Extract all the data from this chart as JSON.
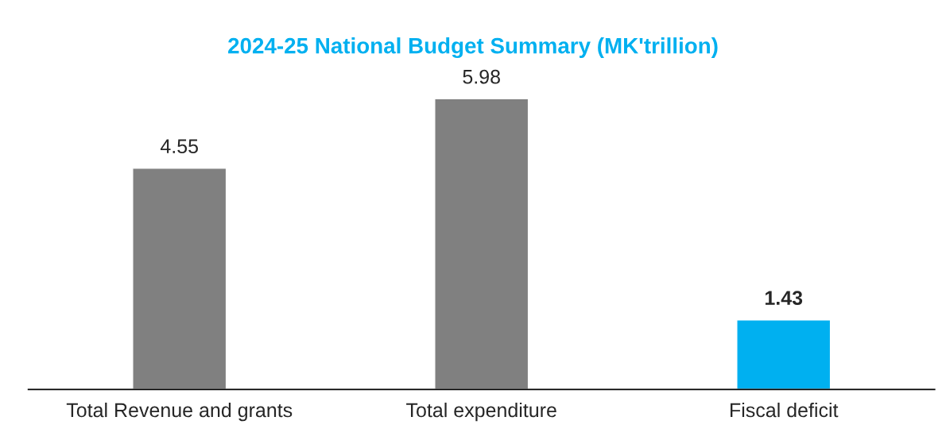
{
  "chart_data": {
    "type": "bar",
    "title": "2024-25 National Budget Summary (MK'trillion)",
    "categories": [
      "Total Revenue and grants",
      "Total expenditure",
      "Fiscal deficit"
    ],
    "values": [
      4.55,
      5.98,
      1.43
    ],
    "colors": [
      "#808080",
      "#808080",
      "#00b0f0"
    ],
    "data_labels": true,
    "grid": false,
    "legend": false
  }
}
